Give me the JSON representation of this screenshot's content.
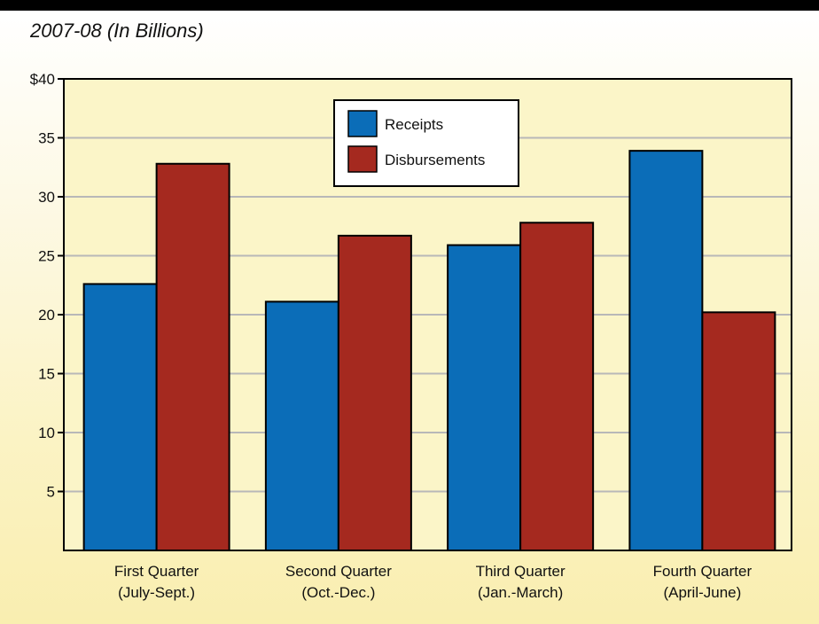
{
  "chart_data": {
    "type": "bar",
    "title": "2007-08 (In Billions)",
    "categories": [
      [
        "First Quarter",
        "(July-Sept.)"
      ],
      [
        "Second Quarter",
        "(Oct.-Dec.)"
      ],
      [
        "Third Quarter",
        "(Jan.-March)"
      ],
      [
        "Fourth Quarter",
        "(April-June)"
      ]
    ],
    "series": [
      {
        "name": "Receipts",
        "color": "#0b6db8",
        "values": [
          22.6,
          21.1,
          25.9,
          33.9
        ]
      },
      {
        "name": "Disbursements",
        "color": "#a5291f",
        "values": [
          32.8,
          26.7,
          27.8,
          20.2
        ]
      }
    ],
    "y_ticks": [
      {
        "value": 40,
        "label": "$40"
      },
      {
        "value": 35,
        "label": "35"
      },
      {
        "value": 30,
        "label": "30"
      },
      {
        "value": 25,
        "label": "25"
      },
      {
        "value": 20,
        "label": "20"
      },
      {
        "value": 15,
        "label": "15"
      },
      {
        "value": 10,
        "label": "10"
      },
      {
        "value": 5,
        "label": "5"
      }
    ],
    "ylim": [
      0,
      40
    ],
    "grid": true,
    "legend_position": "top-center",
    "plot_background": "#fbf5c8",
    "gridline_color": "#b8b8b8"
  }
}
